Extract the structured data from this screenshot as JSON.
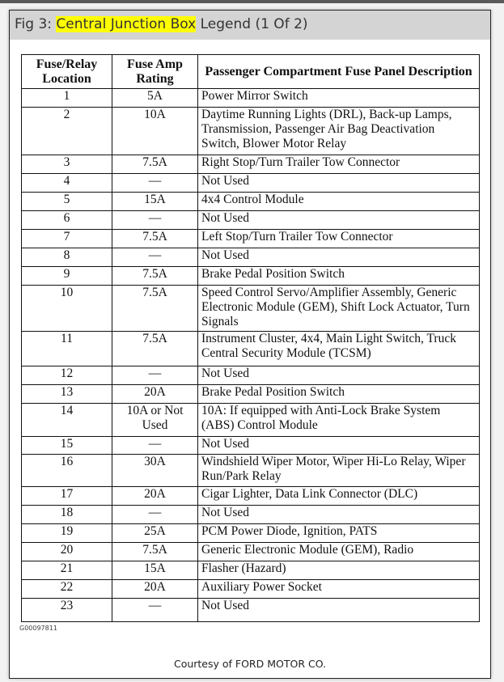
{
  "figure": {
    "title_prefix": "Fig 3: ",
    "title_highlight": "Central Junction Box",
    "title_suffix": " Legend (1 Of 2)",
    "highlight_color": "#ffff00"
  },
  "table": {
    "headers": [
      "Fuse/Relay Location",
      "Fuse Amp Rating",
      "Passenger Compartment Fuse Panel Description"
    ],
    "rows": [
      {
        "loc": "1",
        "amp": "5A",
        "desc": "Power Mirror Switch"
      },
      {
        "loc": "2",
        "amp": "10A",
        "desc": "Daytime Running Lights (DRL), Back-up Lamps, Transmission, Passenger Air Bag Deactivation Switch, Blower Motor Relay"
      },
      {
        "loc": "3",
        "amp": "7.5A",
        "desc": "Right Stop/Turn Trailer Tow Connector"
      },
      {
        "loc": "4",
        "amp": "—",
        "desc": "Not Used"
      },
      {
        "loc": "5",
        "amp": "15A",
        "desc": "4x4 Control Module"
      },
      {
        "loc": "6",
        "amp": "—",
        "desc": "Not Used"
      },
      {
        "loc": "7",
        "amp": "7.5A",
        "desc": "Left Stop/Turn Trailer Tow Connector"
      },
      {
        "loc": "8",
        "amp": "—",
        "desc": "Not Used"
      },
      {
        "loc": "9",
        "amp": "7.5A",
        "desc": "Brake Pedal Position Switch"
      },
      {
        "loc": "10",
        "amp": "7.5A",
        "desc": "Speed Control Servo/Amplifier Assembly, Generic Electronic Module (GEM), Shift Lock Actuator, Turn Signals"
      },
      {
        "loc": "11",
        "amp": "7.5A",
        "desc": "Instrument Cluster, 4x4, Main Light Switch, Truck Central Security Module (TCSM)"
      },
      {
        "loc": "12",
        "amp": "—",
        "desc": "Not Used"
      },
      {
        "loc": "13",
        "amp": "20A",
        "desc": "Brake Pedal Position Switch"
      },
      {
        "loc": "14",
        "amp": "10A or Not Used",
        "desc": "10A: If equipped with Anti-Lock Brake System (ABS) Control Module"
      },
      {
        "loc": "15",
        "amp": "—",
        "desc": "Not Used"
      },
      {
        "loc": "16",
        "amp": "30A",
        "desc": "Windshield Wiper Motor, Wiper Hi-Lo Relay, Wiper Run/Park Relay"
      },
      {
        "loc": "17",
        "amp": "20A",
        "desc": "Cigar Lighter, Data Link Connector (DLC)"
      },
      {
        "loc": "18",
        "amp": "—",
        "desc": "Not Used"
      },
      {
        "loc": "19",
        "amp": "25A",
        "desc": "PCM Power Diode, Ignition, PATS"
      },
      {
        "loc": "20",
        "amp": "7.5A",
        "desc": "Generic Electronic Module (GEM), Radio"
      },
      {
        "loc": "21",
        "amp": "15A",
        "desc": "Flasher (Hazard)"
      },
      {
        "loc": "22",
        "amp": "20A",
        "desc": "Auxiliary Power Socket"
      },
      {
        "loc": "23",
        "amp": "—",
        "desc": "Not Used"
      }
    ]
  },
  "graphic_code": "G00097811",
  "courtesy": "Courtesy of FORD MOTOR CO."
}
